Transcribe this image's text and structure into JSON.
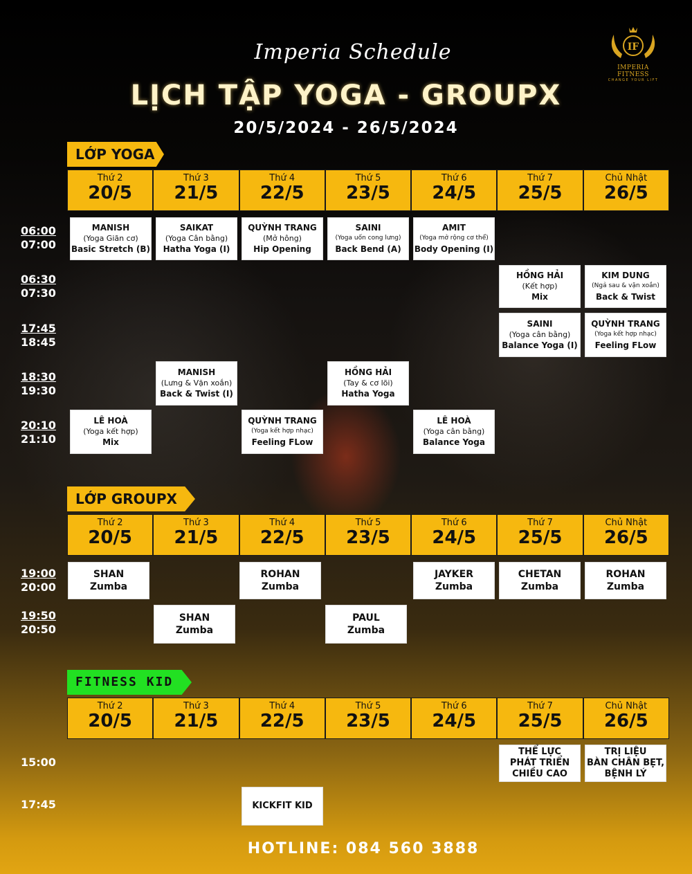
{
  "header": {
    "script_title": "Imperia Schedule",
    "title": "LỊCH TẬP YOGA - GROUPX",
    "date_range": "20/5/2024 - 26/5/2024"
  },
  "logo": {
    "monogram": "IF",
    "name": "IMPERIA FITNESS",
    "tagline": "CHANGE YOUR LIFT"
  },
  "yoga": {
    "label": "LỚP YOGA",
    "days": [
      {
        "name": "Thứ 2",
        "date": "20/5"
      },
      {
        "name": "Thứ 3",
        "date": "21/5"
      },
      {
        "name": "Thứ 4",
        "date": "22/5"
      },
      {
        "name": "Thứ 5",
        "date": "23/5"
      },
      {
        "name": "Thứ 6",
        "date": "24/5"
      },
      {
        "name": "Thứ 7",
        "date": "25/5"
      },
      {
        "name": "Chủ Nhật",
        "date": "26/5"
      }
    ],
    "times": [
      {
        "start": "06:00",
        "end": "07:00"
      },
      {
        "start": "06:30",
        "end": "07:30"
      },
      {
        "start": "17:45",
        "end": "18:45"
      },
      {
        "start": "18:30",
        "end": "19:30"
      },
      {
        "start": "20:10",
        "end": "21:10"
      }
    ],
    "classes": [
      {
        "instructor": "MANISH",
        "subtitle": "(Yoga Giãn cơ)",
        "class": "Basic Stretch (B)"
      },
      {
        "instructor": "SAIKAT",
        "subtitle": "(Yoga Cân bằng)",
        "class": "Hatha Yoga (I)"
      },
      {
        "instructor": "QUỲNH TRANG",
        "subtitle": "(Mở hông)",
        "class": "Hip Opening"
      },
      {
        "instructor": "SAINI",
        "subtitle": "(Yoga uốn cong lưng)",
        "class": "Back Bend (A)"
      },
      {
        "instructor": "AMIT",
        "subtitle": "(Yoga mở rộng cơ thể)",
        "class": "Body Opening (I)"
      },
      {
        "instructor": "HỒNG HẢI",
        "subtitle": "(Kết hợp)",
        "class": "Mix"
      },
      {
        "instructor": "KIM DUNG",
        "subtitle": "(Ngả sau & vặn xoắn)",
        "class": "Back & Twist"
      },
      {
        "instructor": "SAINI",
        "subtitle": "(Yoga cân bằng)",
        "class": "Balance Yoga (I)"
      },
      {
        "instructor": "QUỲNH TRANG",
        "subtitle": "(Yoga kết hợp nhạc)",
        "class": "Feeling FLow"
      },
      {
        "instructor": "MANISH",
        "subtitle": "(Lưng & Vặn xoắn)",
        "class": "Back & Twist (I)"
      },
      {
        "instructor": "HỒNG HẢI",
        "subtitle": "(Tay & cơ lõi)",
        "class": "Hatha Yoga"
      },
      {
        "instructor": "LÊ HOÀ",
        "subtitle": "(Yoga kết hợp)",
        "class": "Mix"
      },
      {
        "instructor": "QUỲNH TRANG",
        "subtitle": "(Yoga kết hợp nhạc)",
        "class": "Feeling FLow"
      },
      {
        "instructor": "LÊ HOÀ",
        "subtitle": "(Yoga cân bằng)",
        "class": "Balance Yoga"
      }
    ]
  },
  "groupx": {
    "label": "LỚP GROUPX",
    "days": [
      {
        "name": "Thứ 2",
        "date": "20/5"
      },
      {
        "name": "Thứ 3",
        "date": "21/5"
      },
      {
        "name": "Thứ 4",
        "date": "22/5"
      },
      {
        "name": "Thứ 5",
        "date": "23/5"
      },
      {
        "name": "Thứ 6",
        "date": "24/5"
      },
      {
        "name": "Thứ 7",
        "date": "25/5"
      },
      {
        "name": "Chủ Nhật",
        "date": "26/5"
      }
    ],
    "times": [
      {
        "start": "19:00",
        "end": "20:00"
      },
      {
        "start": "19:50",
        "end": "20:50"
      }
    ],
    "classes": [
      {
        "instructor": "SHAN",
        "class": "Zumba"
      },
      {
        "instructor": "ROHAN",
        "class": "Zumba"
      },
      {
        "instructor": "JAYKER",
        "class": "Zumba"
      },
      {
        "instructor": "CHETAN",
        "class": "Zumba"
      },
      {
        "instructor": "ROHAN",
        "class": "Zumba"
      },
      {
        "instructor": "SHAN",
        "class": "Zumba"
      },
      {
        "instructor": "PAUL",
        "class": "Zumba"
      }
    ]
  },
  "kid": {
    "label": "FITNESS KID",
    "days": [
      {
        "name": "Thứ 2",
        "date": "20/5"
      },
      {
        "name": "Thứ 3",
        "date": "21/5"
      },
      {
        "name": "Thứ 4",
        "date": "22/5"
      },
      {
        "name": "Thứ 5",
        "date": "23/5"
      },
      {
        "name": "Thứ 6",
        "date": "24/5"
      },
      {
        "name": "Thứ 7",
        "date": "25/5"
      },
      {
        "name": "Chủ Nhật",
        "date": "26/5"
      }
    ],
    "times": [
      "15:00",
      "17:45"
    ],
    "classes": [
      {
        "lines": [
          "THỂ LỰC",
          "PHÁT TRIỂN",
          "CHIỀU CAO"
        ]
      },
      {
        "lines": [
          "TRỊ LIỆU",
          "BÀN CHÂN BẸT,",
          "BỆNH LÝ"
        ]
      },
      {
        "lines": [
          "KICKFIT KID"
        ]
      }
    ]
  },
  "hotline": "HOTLINE: 084 560 3888"
}
